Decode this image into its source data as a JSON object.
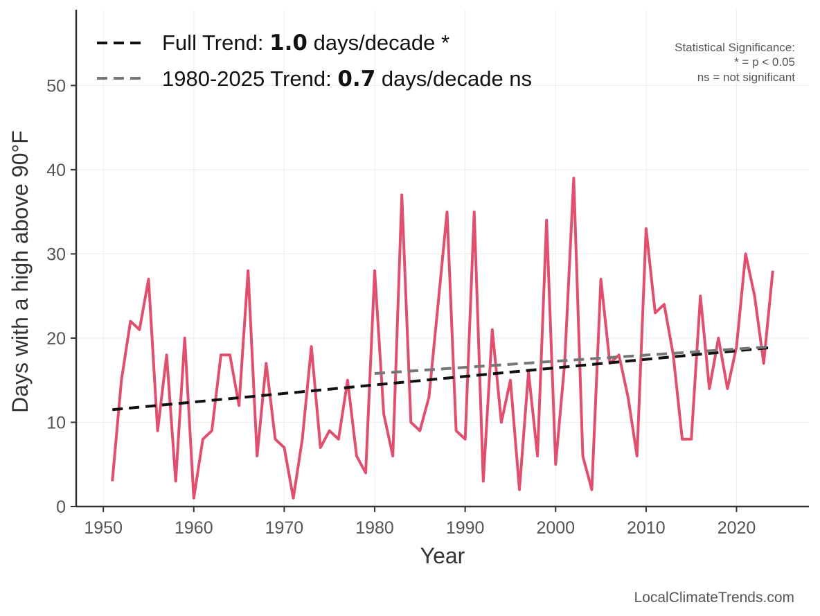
{
  "chart_data": {
    "type": "line",
    "xlabel": "Year",
    "ylabel": "Days with a high above 90°F",
    "xlim": [
      1947,
      2028
    ],
    "ylim": [
      0,
      59
    ],
    "x_ticks": [
      1950,
      1960,
      1970,
      1980,
      1990,
      2000,
      2010,
      2020
    ],
    "y_ticks": [
      0,
      10,
      20,
      30,
      40,
      50
    ],
    "grid": true,
    "legend_position": "top-left",
    "series": [
      {
        "color": "#e0506e",
        "x": [
          1951,
          1952,
          1953,
          1954,
          1955,
          1956,
          1957,
          1958,
          1959,
          1960,
          1961,
          1962,
          1963,
          1964,
          1965,
          1966,
          1967,
          1968,
          1969,
          1970,
          1971,
          1972,
          1973,
          1974,
          1975,
          1976,
          1977,
          1978,
          1979,
          1980,
          1981,
          1982,
          1983,
          1984,
          1985,
          1986,
          1987,
          1988,
          1989,
          1990,
          1991,
          1992,
          1993,
          1994,
          1995,
          1996,
          1997,
          1998,
          1999,
          2000,
          2001,
          2002,
          2003,
          2004,
          2005,
          2006,
          2007,
          2008,
          2009,
          2010,
          2011,
          2012,
          2013,
          2014,
          2015,
          2016,
          2017,
          2018,
          2019,
          2020,
          2021,
          2022,
          2023,
          2024
        ],
        "y": [
          3,
          15,
          22,
          21,
          27,
          9,
          18,
          3,
          20,
          1,
          8,
          9,
          18,
          18,
          12,
          28,
          6,
          17,
          8,
          7,
          1,
          8,
          19,
          7,
          9,
          8,
          15,
          6,
          4,
          28,
          11,
          6,
          37,
          10,
          9,
          13,
          24,
          35,
          9,
          8,
          35,
          3,
          21,
          10,
          15,
          2,
          16,
          6,
          34,
          5,
          17,
          39,
          6,
          2,
          27,
          17,
          18,
          13,
          6,
          33,
          23,
          24,
          18,
          8,
          8,
          25,
          14,
          20,
          14,
          19,
          30,
          25,
          17,
          28
        ]
      }
    ],
    "trends": [
      {
        "label_prefix": "Full Trend: ",
        "value": "1.0",
        "label_suffix": " days/decade *",
        "color": "#111111",
        "x": [
          1951,
          2024
        ],
        "y": [
          11.5,
          18.9
        ]
      },
      {
        "label_prefix": "1980-2025 Trend: ",
        "value": "0.7",
        "label_suffix": " days/decade ns",
        "color": "#777777",
        "x": [
          1980,
          2024
        ],
        "y": [
          15.8,
          19.0
        ]
      }
    ],
    "annotation": {
      "line1": "Statistical Significance:",
      "line2": "* = p < 0.05",
      "line3": "ns = not significant"
    },
    "source": "LocalClimateTrends.com"
  }
}
